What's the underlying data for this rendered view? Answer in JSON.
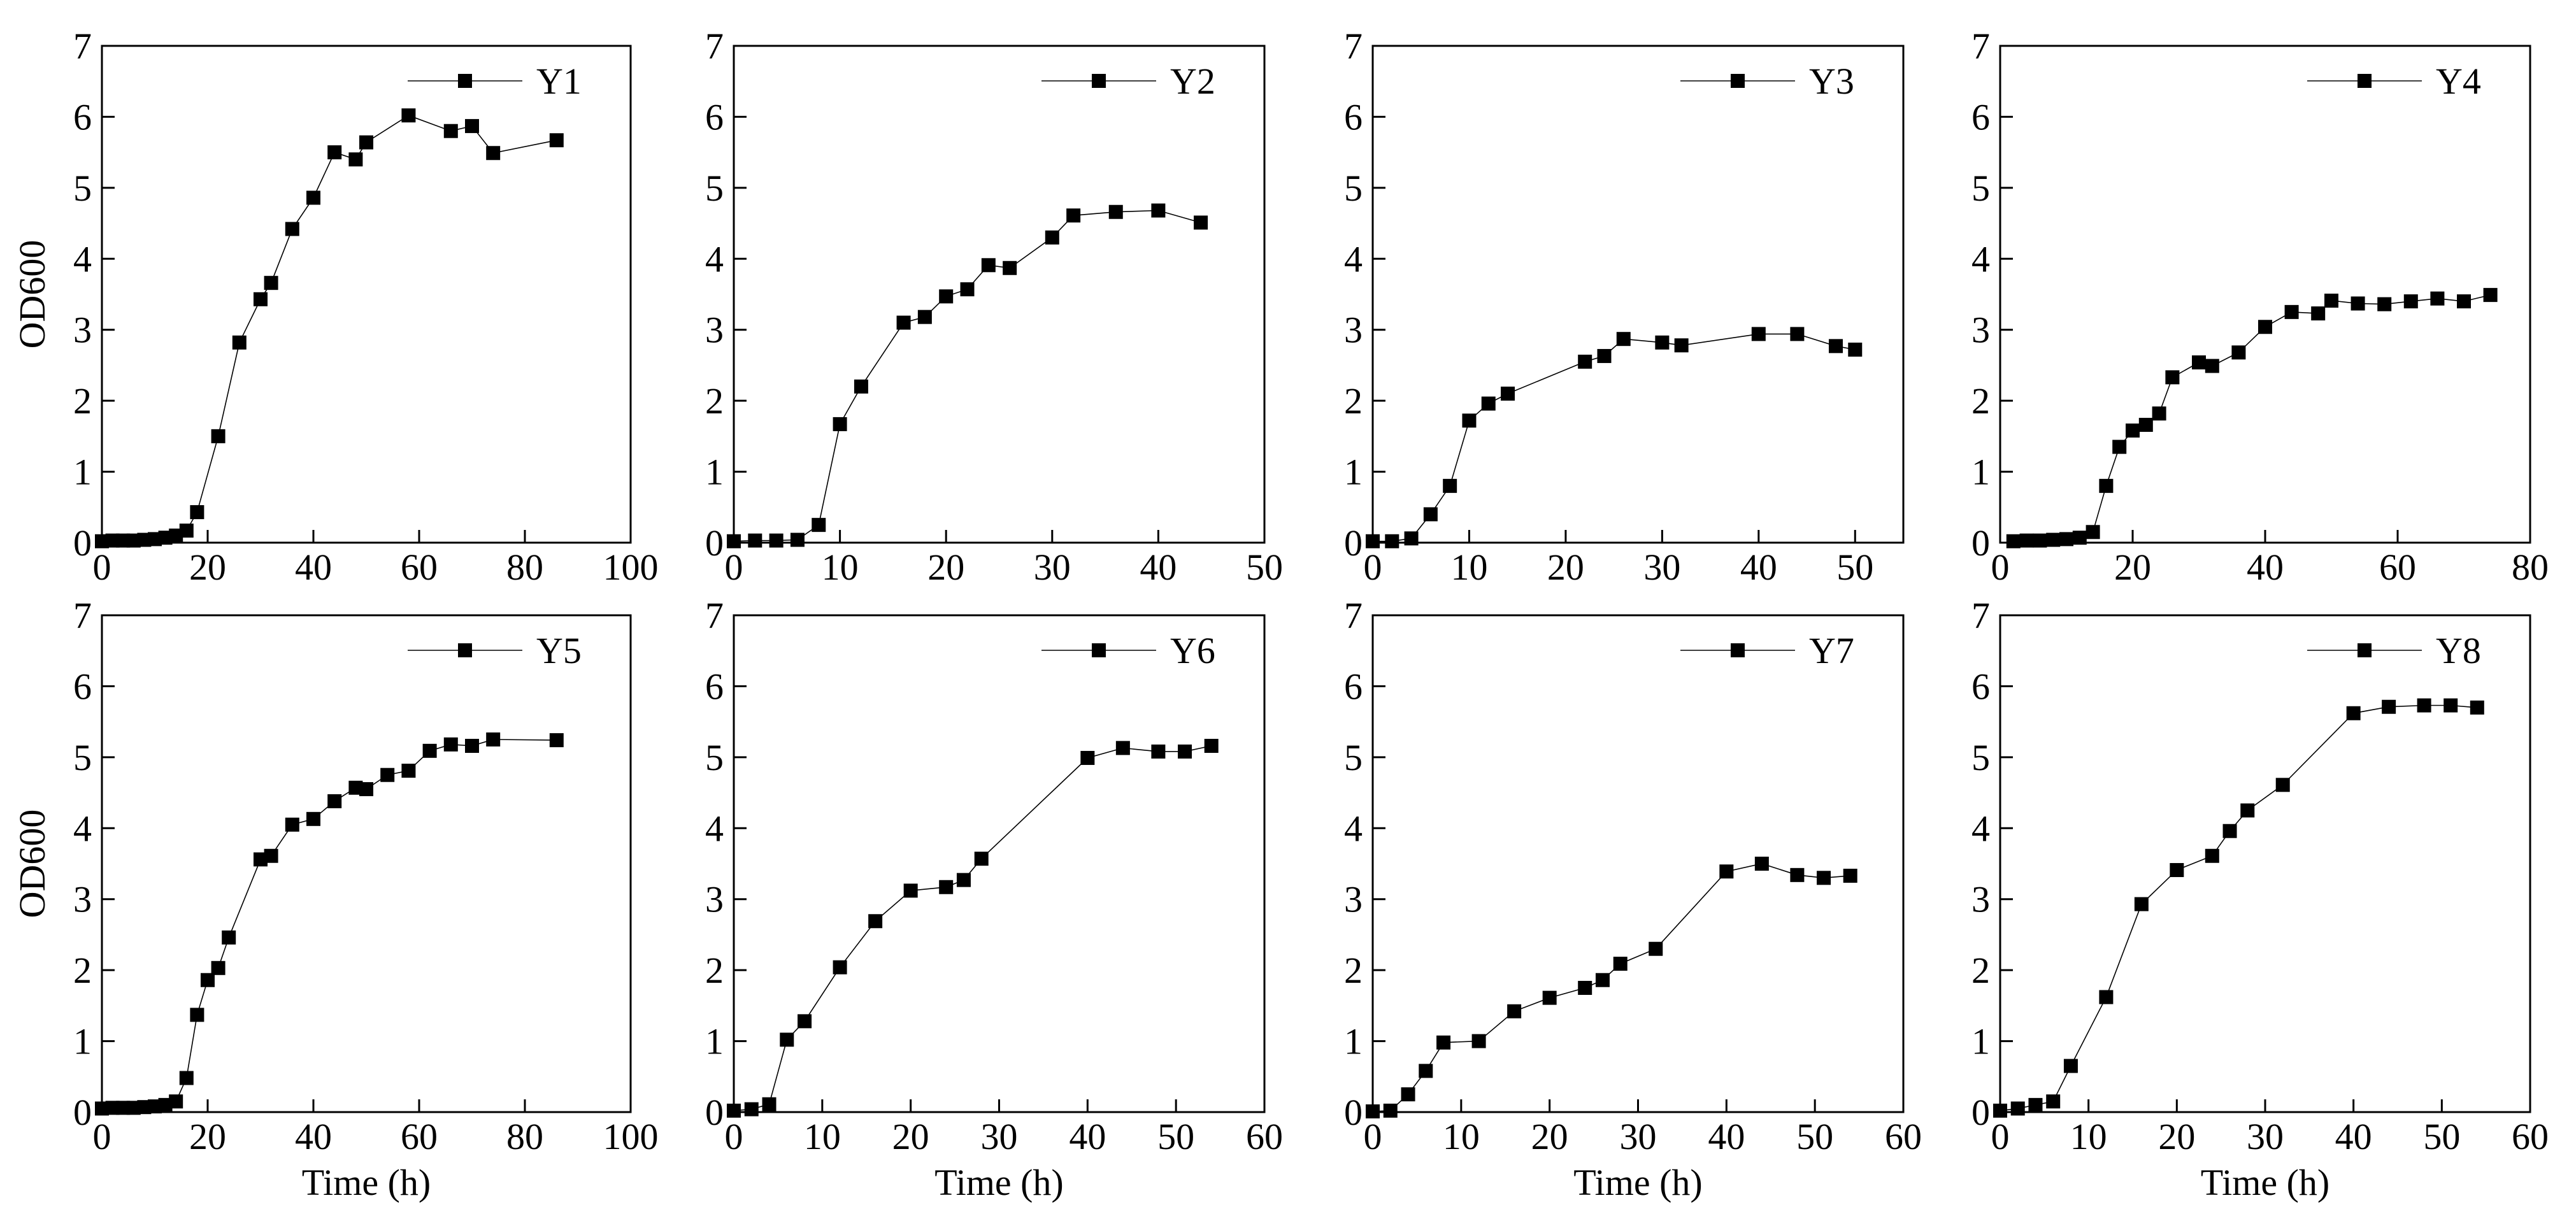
{
  "chart_data": [
    {
      "type": "line",
      "xlabel": "",
      "ylabel": "OD600",
      "xlim": [
        0,
        100
      ],
      "xticks": [
        0,
        20,
        40,
        60,
        80,
        100
      ],
      "ylim": [
        0,
        7
      ],
      "yticks": [
        0,
        1,
        2,
        3,
        4,
        5,
        6,
        7
      ],
      "legend_position": "top-right",
      "series": [
        {
          "name": "Y1",
          "x": [
            0,
            2,
            4,
            6,
            8,
            10,
            12,
            14,
            16,
            18,
            22,
            26,
            30,
            32,
            36,
            40,
            44,
            48,
            50,
            58,
            66,
            70,
            74,
            86
          ],
          "y": [
            0.02,
            0.03,
            0.03,
            0.03,
            0.04,
            0.05,
            0.07,
            0.1,
            0.17,
            0.43,
            1.5,
            2.82,
            3.43,
            3.66,
            4.42,
            4.86,
            5.5,
            5.4,
            5.64,
            6.02,
            5.8,
            5.87,
            5.49,
            5.67
          ]
        }
      ]
    },
    {
      "type": "line",
      "xlabel": "",
      "ylabel": "",
      "xlim": [
        0,
        50
      ],
      "xticks": [
        0,
        10,
        20,
        30,
        40,
        50
      ],
      "ylim": [
        0,
        7
      ],
      "yticks": [
        0,
        1,
        2,
        3,
        4,
        5,
        6,
        7
      ],
      "legend_position": "top-right",
      "series": [
        {
          "name": "Y2",
          "x": [
            0,
            2,
            4,
            6,
            8,
            10,
            12,
            16,
            18,
            20,
            22,
            24,
            26,
            30,
            32,
            36,
            40,
            44
          ],
          "y": [
            0.02,
            0.03,
            0.03,
            0.04,
            0.25,
            1.67,
            2.2,
            3.1,
            3.18,
            3.47,
            3.57,
            3.91,
            3.87,
            4.3,
            4.61,
            4.66,
            4.68,
            4.51
          ]
        }
      ]
    },
    {
      "type": "line",
      "xlabel": "",
      "ylabel": "",
      "xlim": [
        0,
        55
      ],
      "xticks": [
        0,
        10,
        20,
        30,
        40,
        50
      ],
      "ylim": [
        0,
        7
      ],
      "yticks": [
        0,
        1,
        2,
        3,
        4,
        5,
        6,
        7
      ],
      "legend_position": "top-right",
      "series": [
        {
          "name": "Y3",
          "x": [
            0,
            2,
            4,
            6,
            8,
            10,
            12,
            14,
            22,
            24,
            26,
            30,
            32,
            40,
            44,
            48,
            50
          ],
          "y": [
            0.02,
            0.02,
            0.06,
            0.4,
            0.8,
            1.72,
            1.96,
            2.1,
            2.55,
            2.63,
            2.87,
            2.82,
            2.78,
            2.94,
            2.94,
            2.77,
            2.72
          ]
        }
      ]
    },
    {
      "type": "line",
      "xlabel": "",
      "ylabel": "",
      "xlim": [
        0,
        80
      ],
      "xticks": [
        0,
        20,
        40,
        60,
        80
      ],
      "ylim": [
        0,
        7
      ],
      "yticks": [
        0,
        1,
        2,
        3,
        4,
        5,
        6,
        7
      ],
      "legend_position": "top-right",
      "series": [
        {
          "name": "Y4",
          "x": [
            2,
            4,
            6,
            8,
            10,
            12,
            14,
            16,
            18,
            20,
            22,
            24,
            26,
            30,
            32,
            36,
            40,
            44,
            48,
            50,
            54,
            58,
            62,
            66,
            70,
            74
          ],
          "y": [
            0.02,
            0.03,
            0.03,
            0.04,
            0.05,
            0.07,
            0.15,
            0.8,
            1.35,
            1.58,
            1.66,
            1.82,
            2.33,
            2.54,
            2.49,
            2.68,
            3.04,
            3.25,
            3.23,
            3.41,
            3.37,
            3.36,
            3.4,
            3.44,
            3.4,
            3.49
          ]
        }
      ]
    },
    {
      "type": "line",
      "xlabel": "Time (h)",
      "ylabel": "OD600",
      "xlim": [
        0,
        100
      ],
      "xticks": [
        0,
        20,
        40,
        60,
        80,
        100
      ],
      "ylim": [
        0,
        7
      ],
      "yticks": [
        0,
        1,
        2,
        3,
        4,
        5,
        6,
        7
      ],
      "legend_position": "top-right",
      "series": [
        {
          "name": "Y5",
          "x": [
            0,
            2,
            4,
            6,
            8,
            10,
            12,
            14,
            16,
            18,
            20,
            22,
            24,
            30,
            32,
            36,
            40,
            44,
            48,
            50,
            54,
            58,
            62,
            66,
            70,
            74,
            86
          ],
          "y": [
            0.05,
            0.06,
            0.06,
            0.06,
            0.07,
            0.08,
            0.1,
            0.15,
            0.48,
            1.37,
            1.86,
            2.03,
            2.46,
            3.56,
            3.61,
            4.05,
            4.13,
            4.38,
            4.57,
            4.55,
            4.75,
            4.81,
            5.09,
            5.18,
            5.16,
            5.25,
            5.24
          ]
        }
      ]
    },
    {
      "type": "line",
      "xlabel": "Time (h)",
      "ylabel": "",
      "xlim": [
        0,
        60
      ],
      "xticks": [
        0,
        10,
        20,
        30,
        40,
        50,
        60
      ],
      "ylim": [
        0,
        7
      ],
      "yticks": [
        0,
        1,
        2,
        3,
        4,
        5,
        6,
        7
      ],
      "legend_position": "top-right",
      "series": [
        {
          "name": "Y6",
          "x": [
            0,
            2,
            4,
            6,
            8,
            12,
            16,
            20,
            24,
            26,
            28,
            40,
            44,
            48,
            51,
            54
          ],
          "y": [
            0.02,
            0.04,
            0.11,
            1.02,
            1.28,
            2.04,
            2.69,
            3.12,
            3.17,
            3.27,
            3.57,
            4.99,
            5.13,
            5.08,
            5.08,
            5.16
          ]
        }
      ]
    },
    {
      "type": "line",
      "xlabel": "Time (h)",
      "ylabel": "",
      "xlim": [
        0,
        60
      ],
      "xticks": [
        0,
        10,
        20,
        30,
        40,
        50,
        60
      ],
      "ylim": [
        0,
        7
      ],
      "yticks": [
        0,
        1,
        2,
        3,
        4,
        5,
        6,
        7
      ],
      "legend_position": "top-right",
      "series": [
        {
          "name": "Y7",
          "x": [
            0,
            2,
            4,
            6,
            8,
            12,
            16,
            20,
            24,
            26,
            28,
            32,
            40,
            44,
            48,
            51,
            54
          ],
          "y": [
            0.01,
            0.02,
            0.25,
            0.58,
            0.98,
            1.0,
            1.42,
            1.61,
            1.75,
            1.86,
            2.09,
            2.3,
            3.39,
            3.5,
            3.34,
            3.3,
            3.33
          ]
        }
      ]
    },
    {
      "type": "line",
      "xlabel": "Time (h)",
      "ylabel": "",
      "xlim": [
        0,
        60
      ],
      "xticks": [
        0,
        10,
        20,
        30,
        40,
        50,
        60
      ],
      "ylim": [
        0,
        7
      ],
      "yticks": [
        0,
        1,
        2,
        3,
        4,
        5,
        6,
        7
      ],
      "legend_position": "top-right",
      "series": [
        {
          "name": "Y8",
          "x": [
            0,
            2,
            4,
            6,
            8,
            12,
            16,
            20,
            24,
            26,
            28,
            32,
            40,
            44,
            48,
            51,
            54
          ],
          "y": [
            0.02,
            0.05,
            0.1,
            0.15,
            0.65,
            1.62,
            2.93,
            3.41,
            3.61,
            3.96,
            4.25,
            4.61,
            5.62,
            5.71,
            5.73,
            5.73,
            5.7
          ]
        }
      ]
    }
  ]
}
